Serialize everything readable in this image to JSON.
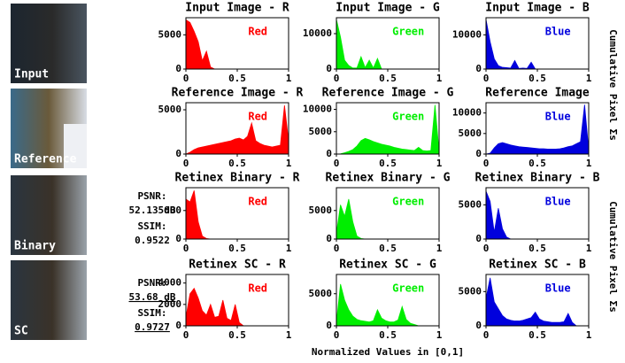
{
  "rows": [
    {
      "label": "Input"
    },
    {
      "label": "Reference"
    },
    {
      "label": "Binary",
      "psnr_label": "PSNR:",
      "psnr": "52.13 dB",
      "ssim_label": "SSIM:",
      "ssim": "0.9522",
      "underline": false
    },
    {
      "label": "SC",
      "psnr_label": "PSNR:",
      "psnr": "53.68 dB",
      "ssim_label": "SSIM:",
      "ssim": "0.9727",
      "underline": true
    }
  ],
  "side_labels": [
    "Cumulative Pixel Σs",
    "Cumulative Pixel Σs"
  ],
  "x_label": "Normalized Values in [0,1]",
  "chart_data": [
    {
      "type": "area",
      "title": "Input Image - R",
      "label": "Red",
      "color": "#ff0000",
      "xlim": [
        0,
        1
      ],
      "xticks": [
        0,
        0.5,
        1
      ],
      "ylim": [
        0,
        7500
      ],
      "yticks": [
        0,
        5000
      ],
      "x": [
        0,
        0.04,
        0.08,
        0.12,
        0.16,
        0.2,
        0.24,
        0.28,
        0.32,
        0.36,
        0.4,
        0.44,
        0.48,
        0.52,
        0.56,
        0.6,
        0.64,
        0.68,
        0.72,
        0.76,
        0.8,
        0.84,
        0.88,
        0.92,
        0.96,
        1
      ],
      "values": [
        7200,
        6800,
        5500,
        4000,
        1200,
        2600,
        300,
        0,
        0,
        0,
        0,
        0,
        0,
        0,
        0,
        0,
        0,
        0,
        0,
        0,
        0,
        0,
        0,
        0,
        0,
        0
      ]
    },
    {
      "type": "area",
      "title": "Input Image - G",
      "label": "Green",
      "color": "#00ee00",
      "xlim": [
        0,
        1
      ],
      "xticks": [
        0,
        0.5,
        1
      ],
      "ylim": [
        0,
        14500
      ],
      "yticks": [
        0,
        10000
      ],
      "x": [
        0,
        0.04,
        0.08,
        0.12,
        0.16,
        0.2,
        0.24,
        0.28,
        0.32,
        0.36,
        0.4,
        0.44,
        0.48,
        0.52,
        0.56,
        0.6,
        0.64,
        0.68,
        0.72,
        0.76,
        0.8,
        0.84,
        0.88,
        0.92,
        0.96,
        1
      ],
      "values": [
        14000,
        9000,
        2500,
        1000,
        300,
        300,
        3500,
        400,
        2500,
        300,
        3000,
        0,
        0,
        0,
        0,
        0,
        0,
        0,
        0,
        0,
        0,
        0,
        0,
        0,
        0,
        0
      ]
    },
    {
      "type": "area",
      "title": "Input Image - B",
      "label": "Blue",
      "color": "#0000dd",
      "xlim": [
        0,
        1
      ],
      "xticks": [
        0,
        0.5,
        1
      ],
      "ylim": [
        0,
        15000
      ],
      "yticks": [
        0,
        10000
      ],
      "x": [
        0,
        0.04,
        0.08,
        0.12,
        0.16,
        0.2,
        0.24,
        0.28,
        0.32,
        0.36,
        0.4,
        0.44,
        0.48,
        0.52,
        0.56,
        0.6,
        0.64,
        0.68,
        0.72,
        0.76,
        0.8,
        0.84,
        0.88,
        0.92,
        0.96,
        1
      ],
      "values": [
        14500,
        8000,
        3000,
        1000,
        500,
        400,
        300,
        2500,
        200,
        300,
        200,
        2000,
        0,
        0,
        0,
        0,
        0,
        0,
        0,
        0,
        0,
        0,
        0,
        0,
        0,
        0
      ]
    },
    {
      "type": "area",
      "title": "Reference Image - R",
      "label": "Red",
      "color": "#ff0000",
      "xlim": [
        0,
        1
      ],
      "xticks": [
        0,
        0.5,
        1
      ],
      "ylim": [
        0,
        5800
      ],
      "yticks": [
        0,
        5000
      ],
      "x": [
        0,
        0.04,
        0.08,
        0.12,
        0.16,
        0.2,
        0.24,
        0.28,
        0.32,
        0.36,
        0.4,
        0.44,
        0.48,
        0.52,
        0.56,
        0.6,
        0.64,
        0.68,
        0.72,
        0.76,
        0.8,
        0.84,
        0.88,
        0.92,
        0.96,
        1
      ],
      "values": [
        0,
        200,
        500,
        700,
        800,
        900,
        1000,
        1100,
        1200,
        1300,
        1400,
        1500,
        1700,
        1800,
        1600,
        2000,
        3500,
        1500,
        1200,
        1000,
        900,
        800,
        900,
        1000,
        5500,
        1500
      ]
    },
    {
      "type": "area",
      "title": "Reference Image - G",
      "label": "Green",
      "color": "#00ee00",
      "xlim": [
        0,
        1
      ],
      "xticks": [
        0,
        0.5,
        1
      ],
      "ylim": [
        0,
        11500
      ],
      "yticks": [
        0,
        5000,
        10000
      ],
      "x": [
        0,
        0.04,
        0.08,
        0.12,
        0.16,
        0.2,
        0.24,
        0.28,
        0.32,
        0.36,
        0.4,
        0.44,
        0.48,
        0.52,
        0.56,
        0.6,
        0.64,
        0.68,
        0.72,
        0.76,
        0.8,
        0.84,
        0.88,
        0.92,
        0.96,
        1
      ],
      "values": [
        0,
        50,
        300,
        600,
        1000,
        1800,
        3000,
        3500,
        3200,
        2800,
        2500,
        2200,
        2000,
        1800,
        1500,
        1300,
        1100,
        1000,
        900,
        800,
        1500,
        800,
        700,
        800,
        11000,
        500
      ]
    },
    {
      "type": "area",
      "title": "Reference Image",
      "label": "Blue",
      "color": "#0000dd",
      "xlim": [
        0,
        1
      ],
      "xticks": [
        0,
        0.5,
        1
      ],
      "ylim": [
        0,
        12500
      ],
      "yticks": [
        0,
        5000,
        10000
      ],
      "x": [
        0,
        0.04,
        0.08,
        0.12,
        0.16,
        0.2,
        0.24,
        0.28,
        0.32,
        0.36,
        0.4,
        0.44,
        0.48,
        0.52,
        0.56,
        0.6,
        0.64,
        0.68,
        0.72,
        0.76,
        0.8,
        0.84,
        0.88,
        0.92,
        0.96,
        1
      ],
      "values": [
        0,
        200,
        1500,
        2500,
        2800,
        2500,
        2200,
        2000,
        1800,
        1700,
        1600,
        1500,
        1400,
        1300,
        1300,
        1200,
        1200,
        1200,
        1300,
        1500,
        1800,
        2000,
        2500,
        3000,
        12000,
        1000
      ]
    },
    {
      "type": "area",
      "title": "Retinex Binary - R",
      "label": "Red",
      "color": "#ff0000",
      "xlim": [
        0,
        1
      ],
      "xticks": [
        0,
        0.5,
        1
      ],
      "ylim": [
        0,
        9000
      ],
      "yticks": [
        0,
        5000
      ],
      "x": [
        0,
        0.04,
        0.08,
        0.12,
        0.16,
        0.2,
        0.24,
        0.28,
        0.32,
        0.36,
        0.4,
        0.44,
        0.48,
        0.52,
        0.56,
        0.6,
        0.64,
        0.68,
        0.72,
        0.76,
        0.8,
        0.84,
        0.88,
        0.92,
        0.96,
        1
      ],
      "values": [
        7000,
        6500,
        8500,
        3000,
        500,
        100,
        0,
        0,
        0,
        0,
        0,
        0,
        0,
        0,
        0,
        0,
        0,
        0,
        0,
        0,
        0,
        0,
        0,
        0,
        0,
        0
      ]
    },
    {
      "type": "area",
      "title": "Retinex Binary - G",
      "label": "Green",
      "color": "#00ee00",
      "xlim": [
        0,
        1
      ],
      "xticks": [
        0,
        0.5,
        1
      ],
      "ylim": [
        0,
        9000
      ],
      "yticks": [
        0,
        5000
      ],
      "x": [
        0,
        0.04,
        0.08,
        0.12,
        0.16,
        0.2,
        0.24,
        0.28,
        0.32,
        0.36,
        0.4,
        0.44,
        0.48,
        0.52,
        0.56,
        0.6,
        0.64,
        0.68,
        0.72,
        0.76,
        0.8,
        0.84,
        0.88,
        0.92,
        0.96,
        1
      ],
      "values": [
        1000,
        6000,
        4000,
        7000,
        3000,
        500,
        100,
        0,
        0,
        0,
        0,
        0,
        0,
        0,
        0,
        0,
        0,
        0,
        0,
        0,
        0,
        0,
        0,
        0,
        0,
        0
      ]
    },
    {
      "type": "area",
      "title": "Retinex Binary - B",
      "label": "Blue",
      "color": "#0000dd",
      "xlim": [
        0,
        1
      ],
      "xticks": [
        0,
        0.5,
        1
      ],
      "ylim": [
        0,
        7500
      ],
      "yticks": [
        0,
        5000
      ],
      "x": [
        0,
        0.04,
        0.08,
        0.12,
        0.16,
        0.2,
        0.24,
        0.28,
        0.32,
        0.36,
        0.4,
        0.44,
        0.48,
        0.52,
        0.56,
        0.6,
        0.64,
        0.68,
        0.72,
        0.76,
        0.8,
        0.84,
        0.88,
        0.92,
        0.96,
        1
      ],
      "values": [
        7000,
        5500,
        1000,
        4500,
        1500,
        300,
        0,
        0,
        0,
        0,
        0,
        0,
        0,
        0,
        0,
        0,
        0,
        0,
        0,
        0,
        0,
        0,
        0,
        0,
        0,
        0
      ]
    },
    {
      "type": "area",
      "title": "Retinex SC - R",
      "label": "Red",
      "color": "#ff0000",
      "xlim": [
        0,
        1
      ],
      "xticks": [
        0,
        0.5,
        1
      ],
      "ylim": [
        0,
        4800
      ],
      "yticks": [
        0,
        2000,
        4000
      ],
      "x": [
        0,
        0.04,
        0.08,
        0.12,
        0.16,
        0.2,
        0.24,
        0.28,
        0.32,
        0.36,
        0.4,
        0.44,
        0.48,
        0.52,
        0.56,
        0.6,
        0.64,
        0.68,
        0.72,
        0.76,
        0.8,
        0.84,
        0.88,
        0.92,
        0.96,
        1
      ],
      "values": [
        800,
        3000,
        3500,
        2600,
        1400,
        1000,
        2000,
        800,
        900,
        2400,
        700,
        500,
        2000,
        300,
        0,
        0,
        0,
        0,
        0,
        0,
        0,
        0,
        0,
        0,
        0,
        0
      ]
    },
    {
      "type": "area",
      "title": "Retinex SC - G",
      "label": "Green",
      "color": "#00ee00",
      "xlim": [
        0,
        1
      ],
      "xticks": [
        0,
        0.5,
        1
      ],
      "ylim": [
        0,
        8000
      ],
      "yticks": [
        0,
        5000
      ],
      "x": [
        0,
        0.04,
        0.08,
        0.12,
        0.16,
        0.2,
        0.24,
        0.28,
        0.32,
        0.36,
        0.4,
        0.44,
        0.48,
        0.52,
        0.56,
        0.6,
        0.64,
        0.68,
        0.72,
        0.76,
        0.8,
        0.84,
        0.88,
        0.92,
        0.96,
        1
      ],
      "values": [
        500,
        6500,
        4000,
        2500,
        1500,
        1000,
        800,
        700,
        600,
        800,
        2500,
        1200,
        800,
        600,
        600,
        900,
        3000,
        1000,
        400,
        200,
        0,
        0,
        0,
        0,
        0,
        0
      ]
    },
    {
      "type": "area",
      "title": "Retinex SC - B",
      "label": "Blue",
      "color": "#0000dd",
      "xlim": [
        0,
        1
      ],
      "xticks": [
        0,
        0.5,
        1
      ],
      "ylim": [
        0,
        7500
      ],
      "yticks": [
        0,
        5000
      ],
      "x": [
        0,
        0.04,
        0.08,
        0.12,
        0.16,
        0.2,
        0.24,
        0.28,
        0.32,
        0.36,
        0.4,
        0.44,
        0.48,
        0.52,
        0.56,
        0.6,
        0.64,
        0.68,
        0.72,
        0.76,
        0.8,
        0.84,
        0.88,
        0.92,
        0.96,
        1
      ],
      "values": [
        4000,
        7000,
        3500,
        2500,
        1500,
        1000,
        800,
        700,
        700,
        800,
        1000,
        1200,
        2000,
        1000,
        700,
        600,
        500,
        500,
        500,
        600,
        1800,
        500,
        0,
        0,
        0,
        0
      ]
    }
  ]
}
